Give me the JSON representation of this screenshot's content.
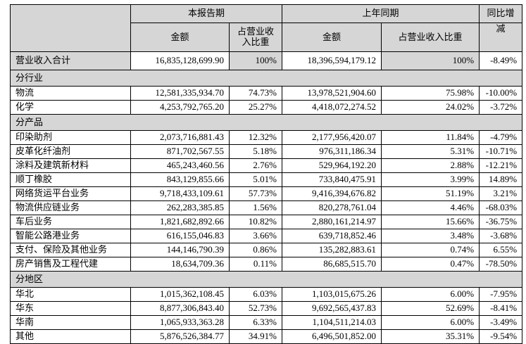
{
  "table": {
    "header": {
      "corner": "",
      "current_period": "本报告期",
      "prior_period": "上年同期",
      "yoy_line1": "同比增",
      "yoy_line2": "减",
      "amount": "金额",
      "ratio": "占营业收入比重"
    },
    "rows": [
      {
        "type": "data",
        "shaded": true,
        "label": "营业收入合计",
        "cur_amount": "16,835,128,699.90",
        "cur_ratio": "100%",
        "prior_amount": "18,396,594,179.12",
        "prior_ratio": "100%",
        "yoy": "-8.49%"
      },
      {
        "type": "section",
        "label": "分行业"
      },
      {
        "type": "data",
        "shaded": false,
        "label": "物流",
        "cur_amount": "12,581,335,934.70",
        "cur_ratio": "74.73%",
        "prior_amount": "13,978,521,904.60",
        "prior_ratio": "75.98%",
        "yoy": "-10.00%"
      },
      {
        "type": "data",
        "shaded": false,
        "label": "化学",
        "cur_amount": "4,253,792,765.20",
        "cur_ratio": "25.27%",
        "prior_amount": "4,418,072,274.52",
        "prior_ratio": "24.02%",
        "yoy": "-3.72%"
      },
      {
        "type": "section",
        "label": "分产品"
      },
      {
        "type": "data",
        "shaded": false,
        "label": "印染助剂",
        "cur_amount": "2,073,716,881.43",
        "cur_ratio": "12.32%",
        "prior_amount": "2,177,956,420.07",
        "prior_ratio": "11.84%",
        "yoy": "-4.79%"
      },
      {
        "type": "data",
        "shaded": false,
        "label": "皮革化纤油剂",
        "cur_amount": "871,702,567.55",
        "cur_ratio": "5.18%",
        "prior_amount": "976,311,186.34",
        "prior_ratio": "5.31%",
        "yoy": "-10.71%"
      },
      {
        "type": "data",
        "shaded": false,
        "label": "涂料及建筑新材料",
        "cur_amount": "465,243,460.56",
        "cur_ratio": "2.76%",
        "prior_amount": "529,964,192.20",
        "prior_ratio": "2.88%",
        "yoy": "-12.21%"
      },
      {
        "type": "data",
        "shaded": false,
        "label": "顺丁橡胶",
        "cur_amount": "843,129,855.66",
        "cur_ratio": "5.01%",
        "prior_amount": "733,840,475.91",
        "prior_ratio": "3.99%",
        "yoy": "14.89%"
      },
      {
        "type": "data",
        "shaded": false,
        "label": "网络货运平台业务",
        "cur_amount": "9,718,433,109.61",
        "cur_ratio": "57.73%",
        "prior_amount": "9,416,394,676.82",
        "prior_ratio": "51.19%",
        "yoy": "3.21%"
      },
      {
        "type": "data",
        "shaded": false,
        "label": "物流供应链业务",
        "cur_amount": "262,283,385.85",
        "cur_ratio": "1.56%",
        "prior_amount": "820,278,761.04",
        "prior_ratio": "4.46%",
        "yoy": "-68.03%"
      },
      {
        "type": "data",
        "shaded": false,
        "label": "车后业务",
        "cur_amount": "1,821,682,892.66",
        "cur_ratio": "10.82%",
        "prior_amount": "2,880,161,214.97",
        "prior_ratio": "15.66%",
        "yoy": "-36.75%"
      },
      {
        "type": "data",
        "shaded": false,
        "label": "智能公路港业务",
        "cur_amount": "616,155,046.83",
        "cur_ratio": "3.66%",
        "prior_amount": "639,718,852.46",
        "prior_ratio": "3.48%",
        "yoy": "-3.68%"
      },
      {
        "type": "data",
        "shaded": false,
        "label": "支付、保险及其他业务",
        "cur_amount": "144,146,790.39",
        "cur_ratio": "0.86%",
        "prior_amount": "135,282,883.61",
        "prior_ratio": "0.74%",
        "yoy": "6.55%"
      },
      {
        "type": "data",
        "shaded": false,
        "label": "房产销售及工程代建",
        "cur_amount": "18,634,709.36",
        "cur_ratio": "0.11%",
        "prior_amount": "86,685,515.70",
        "prior_ratio": "0.47%",
        "yoy": "-78.50%"
      },
      {
        "type": "section",
        "label": "分地区"
      },
      {
        "type": "data",
        "shaded": false,
        "label": "华北",
        "cur_amount": "1,015,362,108.45",
        "cur_ratio": "6.03%",
        "prior_amount": "1,103,015,675.26",
        "prior_ratio": "6.00%",
        "yoy": "-7.95%"
      },
      {
        "type": "data",
        "shaded": false,
        "label": "华东",
        "cur_amount": "8,877,306,843.40",
        "cur_ratio": "52.73%",
        "prior_amount": "9,692,565,437.83",
        "prior_ratio": "52.69%",
        "yoy": "-8.41%"
      },
      {
        "type": "data",
        "shaded": false,
        "label": "华南",
        "cur_amount": "1,065,933,363.28",
        "cur_ratio": "6.33%",
        "prior_amount": "1,104,511,214.03",
        "prior_ratio": "6.00%",
        "yoy": "-3.49%"
      },
      {
        "type": "data",
        "shaded": false,
        "label": "其他",
        "cur_amount": "5,876,526,384.77",
        "cur_ratio": "34.91%",
        "prior_amount": "6,496,501,852.00",
        "prior_ratio": "35.31%",
        "yoy": "-9.54%"
      }
    ]
  }
}
